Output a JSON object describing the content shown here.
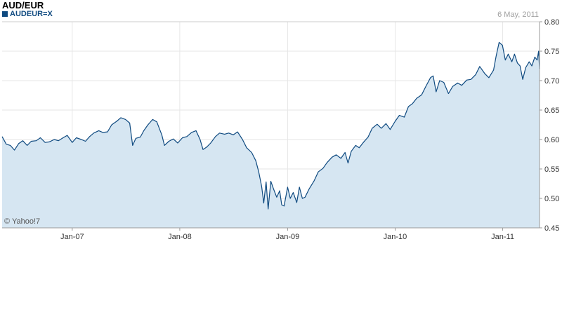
{
  "header": {
    "title": "AUD/EUR",
    "legend_label": "AUDEUR=X",
    "date": "6 May, 2011",
    "credit": "© Yahoo!7"
  },
  "colors": {
    "line": "#0f4a80",
    "fill": "#d6e6f2",
    "grid": "#e6e6e6",
    "axis": "#999999"
  },
  "chart_data": {
    "type": "area",
    "title": "AUD/EUR",
    "series": [
      {
        "name": "AUDEUR=X",
        "points": [
          [
            "2006-05-08",
            0.605
          ],
          [
            "2006-05-22",
            0.592
          ],
          [
            "2006-06-05",
            0.59
          ],
          [
            "2006-06-19",
            0.582
          ],
          [
            "2006-07-03",
            0.593
          ],
          [
            "2006-07-17",
            0.598
          ],
          [
            "2006-08-01",
            0.59
          ],
          [
            "2006-08-15",
            0.597
          ],
          [
            "2006-09-01",
            0.598
          ],
          [
            "2006-09-15",
            0.603
          ],
          [
            "2006-10-01",
            0.595
          ],
          [
            "2006-10-15",
            0.596
          ],
          [
            "2006-11-01",
            0.6
          ],
          [
            "2006-11-15",
            0.598
          ],
          [
            "2006-12-01",
            0.603
          ],
          [
            "2006-12-15",
            0.607
          ],
          [
            "2007-01-01",
            0.595
          ],
          [
            "2007-01-15",
            0.603
          ],
          [
            "2007-02-01",
            0.6
          ],
          [
            "2007-02-15",
            0.597
          ],
          [
            "2007-03-01",
            0.605
          ],
          [
            "2007-03-15",
            0.611
          ],
          [
            "2007-04-01",
            0.615
          ],
          [
            "2007-04-15",
            0.612
          ],
          [
            "2007-05-01",
            0.613
          ],
          [
            "2007-05-15",
            0.625
          ],
          [
            "2007-06-01",
            0.631
          ],
          [
            "2007-06-15",
            0.637
          ],
          [
            "2007-07-01",
            0.634
          ],
          [
            "2007-07-15",
            0.628
          ],
          [
            "2007-07-25",
            0.59
          ],
          [
            "2007-08-05",
            0.602
          ],
          [
            "2007-08-20",
            0.604
          ],
          [
            "2007-09-01",
            0.615
          ],
          [
            "2007-09-15",
            0.625
          ],
          [
            "2007-10-01",
            0.634
          ],
          [
            "2007-10-15",
            0.63
          ],
          [
            "2007-11-01",
            0.608
          ],
          [
            "2007-11-10",
            0.59
          ],
          [
            "2007-11-25",
            0.597
          ],
          [
            "2007-12-10",
            0.601
          ],
          [
            "2007-12-25",
            0.594
          ],
          [
            "2008-01-10",
            0.603
          ],
          [
            "2008-01-25",
            0.605
          ],
          [
            "2008-02-10",
            0.612
          ],
          [
            "2008-02-25",
            0.615
          ],
          [
            "2008-03-10",
            0.6
          ],
          [
            "2008-03-20",
            0.583
          ],
          [
            "2008-04-01",
            0.587
          ],
          [
            "2008-04-15",
            0.594
          ],
          [
            "2008-05-01",
            0.605
          ],
          [
            "2008-05-15",
            0.611
          ],
          [
            "2008-06-01",
            0.609
          ],
          [
            "2008-06-15",
            0.611
          ],
          [
            "2008-07-01",
            0.608
          ],
          [
            "2008-07-15",
            0.613
          ],
          [
            "2008-08-01",
            0.6
          ],
          [
            "2008-08-15",
            0.586
          ],
          [
            "2008-09-01",
            0.578
          ],
          [
            "2008-09-15",
            0.564
          ],
          [
            "2008-09-25",
            0.545
          ],
          [
            "2008-10-05",
            0.52
          ],
          [
            "2008-10-12",
            0.492
          ],
          [
            "2008-10-20",
            0.528
          ],
          [
            "2008-10-27",
            0.482
          ],
          [
            "2008-11-05",
            0.529
          ],
          [
            "2008-11-15",
            0.515
          ],
          [
            "2008-11-25",
            0.502
          ],
          [
            "2008-12-05",
            0.513
          ],
          [
            "2008-12-12",
            0.489
          ],
          [
            "2008-12-20",
            0.487
          ],
          [
            "2009-01-01",
            0.519
          ],
          [
            "2009-01-10",
            0.5
          ],
          [
            "2009-01-20",
            0.51
          ],
          [
            "2009-02-01",
            0.493
          ],
          [
            "2009-02-10",
            0.519
          ],
          [
            "2009-02-20",
            0.5
          ],
          [
            "2009-03-01",
            0.502
          ],
          [
            "2009-03-15",
            0.516
          ],
          [
            "2009-04-01",
            0.53
          ],
          [
            "2009-04-15",
            0.545
          ],
          [
            "2009-05-01",
            0.551
          ],
          [
            "2009-05-15",
            0.561
          ],
          [
            "2009-06-01",
            0.57
          ],
          [
            "2009-06-15",
            0.574
          ],
          [
            "2009-07-01",
            0.568
          ],
          [
            "2009-07-15",
            0.578
          ],
          [
            "2009-07-25",
            0.56
          ],
          [
            "2009-08-05",
            0.58
          ],
          [
            "2009-08-20",
            0.59
          ],
          [
            "2009-09-01",
            0.586
          ],
          [
            "2009-09-15",
            0.595
          ],
          [
            "2009-10-01",
            0.604
          ],
          [
            "2009-10-15",
            0.619
          ],
          [
            "2009-11-01",
            0.626
          ],
          [
            "2009-11-15",
            0.619
          ],
          [
            "2009-12-01",
            0.627
          ],
          [
            "2009-12-15",
            0.617
          ],
          [
            "2010-01-01",
            0.631
          ],
          [
            "2010-01-15",
            0.641
          ],
          [
            "2010-02-01",
            0.638
          ],
          [
            "2010-02-15",
            0.656
          ],
          [
            "2010-03-01",
            0.661
          ],
          [
            "2010-03-15",
            0.67
          ],
          [
            "2010-04-01",
            0.676
          ],
          [
            "2010-04-15",
            0.69
          ],
          [
            "2010-05-01",
            0.705
          ],
          [
            "2010-05-10",
            0.708
          ],
          [
            "2010-05-20",
            0.681
          ],
          [
            "2010-06-01",
            0.7
          ],
          [
            "2010-06-15",
            0.697
          ],
          [
            "2010-07-01",
            0.678
          ],
          [
            "2010-07-15",
            0.69
          ],
          [
            "2010-08-01",
            0.696
          ],
          [
            "2010-08-15",
            0.692
          ],
          [
            "2010-09-01",
            0.701
          ],
          [
            "2010-09-15",
            0.702
          ],
          [
            "2010-10-01",
            0.71
          ],
          [
            "2010-10-15",
            0.724
          ],
          [
            "2010-11-01",
            0.712
          ],
          [
            "2010-11-15",
            0.705
          ],
          [
            "2010-12-01",
            0.718
          ],
          [
            "2010-12-10",
            0.742
          ],
          [
            "2010-12-20",
            0.765
          ],
          [
            "2010-12-31",
            0.76
          ],
          [
            "2011-01-10",
            0.735
          ],
          [
            "2011-01-20",
            0.745
          ],
          [
            "2011-02-01",
            0.732
          ],
          [
            "2011-02-10",
            0.745
          ],
          [
            "2011-02-20",
            0.73
          ],
          [
            "2011-03-01",
            0.725
          ],
          [
            "2011-03-10",
            0.702
          ],
          [
            "2011-03-20",
            0.722
          ],
          [
            "2011-04-01",
            0.732
          ],
          [
            "2011-04-10",
            0.725
          ],
          [
            "2011-04-20",
            0.74
          ],
          [
            "2011-04-28",
            0.735
          ],
          [
            "2011-05-03",
            0.75
          ],
          [
            "2011-05-06",
            0.72
          ]
        ]
      }
    ],
    "x_ticks": [
      {
        "label": "Jan-07",
        "date": "2007-01-01"
      },
      {
        "label": "Jan-08",
        "date": "2008-01-01"
      },
      {
        "label": "Jan-09",
        "date": "2009-01-01"
      },
      {
        "label": "Jan-10",
        "date": "2010-01-01"
      },
      {
        "label": "Jan-11",
        "date": "2011-01-01"
      }
    ],
    "y_ticks": [
      0.45,
      0.5,
      0.55,
      0.6,
      0.65,
      0.7,
      0.75,
      0.8
    ],
    "y_tick_labels": [
      "0.45",
      "0.50",
      "0.55",
      "0.60",
      "0.65",
      "0.70",
      "0.75",
      "0.80"
    ],
    "xlim": [
      "2006-05-08",
      "2011-05-06"
    ],
    "ylim": [
      0.45,
      0.8
    ],
    "grid": true,
    "legend": "top-left",
    "xlabel": "",
    "ylabel": ""
  }
}
